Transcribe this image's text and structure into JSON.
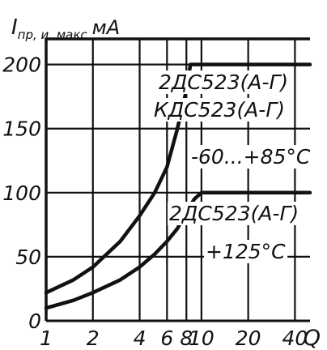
{
  "chart_data": {
    "type": "line",
    "title": "",
    "ylabel": {
      "symbol": "I",
      "subscript": "пр, и, макс",
      "unit": "мА"
    },
    "xlabel": "Q",
    "x_scale": "log",
    "xlim": [
      1,
      50
    ],
    "ylim": [
      0,
      220
    ],
    "x_ticks": [
      1,
      2,
      4,
      6,
      8,
      10,
      20,
      40
    ],
    "x_tick_labels": [
      "1",
      "2",
      "4",
      "6",
      "8",
      "10",
      "20",
      "40"
    ],
    "y_ticks": [
      0,
      50,
      100,
      150,
      200
    ],
    "y_tick_labels": [
      "0",
      "50",
      "100",
      "150",
      "200"
    ],
    "grid": true,
    "series": [
      {
        "x": [
          1,
          1.5,
          2,
          3,
          4,
          5,
          6,
          7,
          8,
          8.5,
          9,
          10,
          20,
          50
        ],
        "y": [
          22,
          32,
          42,
          62,
          82,
          100,
          120,
          150,
          180,
          200,
          200,
          200,
          200,
          200
        ],
        "labels": [
          "2ДС523(А-Г)",
          "КДС523(А-Г)",
          "-60...+85°C"
        ]
      },
      {
        "x": [
          1,
          1.5,
          2,
          3,
          4,
          5,
          6,
          7,
          8,
          9,
          10,
          20,
          50
        ],
        "y": [
          10,
          16,
          22,
          32,
          42,
          52,
          62,
          72,
          85,
          95,
          100,
          100,
          100
        ],
        "labels": [
          "2ДС523(А-Г)",
          "+125°C"
        ]
      }
    ]
  }
}
